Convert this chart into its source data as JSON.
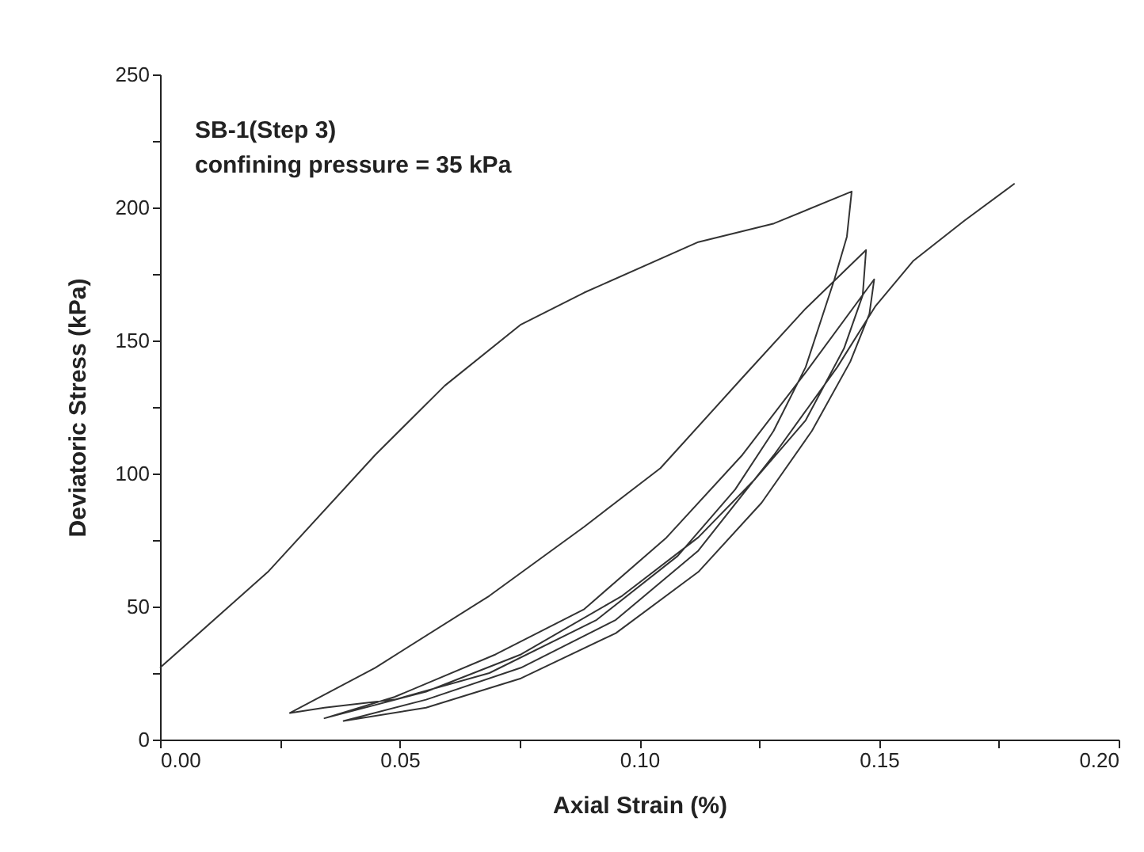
{
  "chart_data": {
    "type": "line",
    "xlabel": "Axial Strain (%)",
    "ylabel": "Deviatoric Stress (kPa)",
    "annotations": [
      "SB-1(Step 3)",
      "confining pressure = 35 kPa"
    ],
    "xlim": [
      0,
      0.2
    ],
    "ylim": [
      0,
      250
    ],
    "xticks": [
      {
        "value": 0,
        "label": "0.00"
      },
      {
        "value": 0.025,
        "label": null
      },
      {
        "value": 0.05,
        "label": "0.05"
      },
      {
        "value": 0.075,
        "label": null
      },
      {
        "value": 0.1,
        "label": "0.10"
      },
      {
        "value": 0.125,
        "label": null
      },
      {
        "value": 0.15,
        "label": "0.15"
      },
      {
        "value": 0.175,
        "label": null
      },
      {
        "value": 0.2,
        "label": "0.20"
      }
    ],
    "yticks": [
      0,
      {
        "value": 25,
        "label": null
      },
      50,
      {
        "value": 75,
        "label": null
      },
      100,
      {
        "value": 125,
        "label": null
      },
      150,
      {
        "value": 175,
        "label": null
      },
      200,
      {
        "value": 225,
        "label": null
      },
      250
    ],
    "grid": false,
    "marker": "none",
    "line_style": "solid",
    "series": [
      {
        "color": "#333333",
        "x": [
          0,
          0.0225,
          0.0449,
          0.0594,
          0.0753,
          0.0885,
          0.1123,
          0.1281,
          0.1443,
          0.1433,
          0.1407,
          0.1347,
          0.128,
          0.12,
          0.108,
          0.0911,
          0.0687,
          0.0489,
          0.0343,
          0.0271,
          0.0449,
          0.0687,
          0.0885,
          0.1044,
          0.1215,
          0.1347,
          0.1473,
          0.1466,
          0.1427,
          0.1347,
          0.1242,
          0.1123,
          0.0964,
          0.0753,
          0.0555,
          0.0343,
          0.0489,
          0.07,
          0.0885,
          0.1057,
          0.1215,
          0.1347,
          0.149,
          0.148,
          0.144,
          0.136,
          0.1255,
          0.1123,
          0.0951,
          0.0753,
          0.0555,
          0.0383,
          0.0555,
          0.0753,
          0.0951,
          0.1123,
          0.1281,
          0.1413,
          0.1493,
          0.1572,
          0.1678,
          0.1783
        ],
        "values": [
          27,
          63,
          107,
          133,
          156,
          168,
          187,
          194,
          206,
          189,
          173,
          140,
          116,
          94,
          69,
          45,
          25,
          15,
          12,
          10,
          27,
          54,
          80,
          102,
          136,
          162,
          184,
          167,
          147,
          120,
          98,
          76,
          54,
          32,
          18,
          8,
          16,
          32,
          49,
          76,
          107,
          138,
          173,
          160,
          142,
          116,
          89,
          63,
          40,
          23,
          12,
          7,
          15,
          27,
          45,
          71,
          107,
          140,
          163,
          180,
          195,
          209
        ]
      }
    ]
  }
}
